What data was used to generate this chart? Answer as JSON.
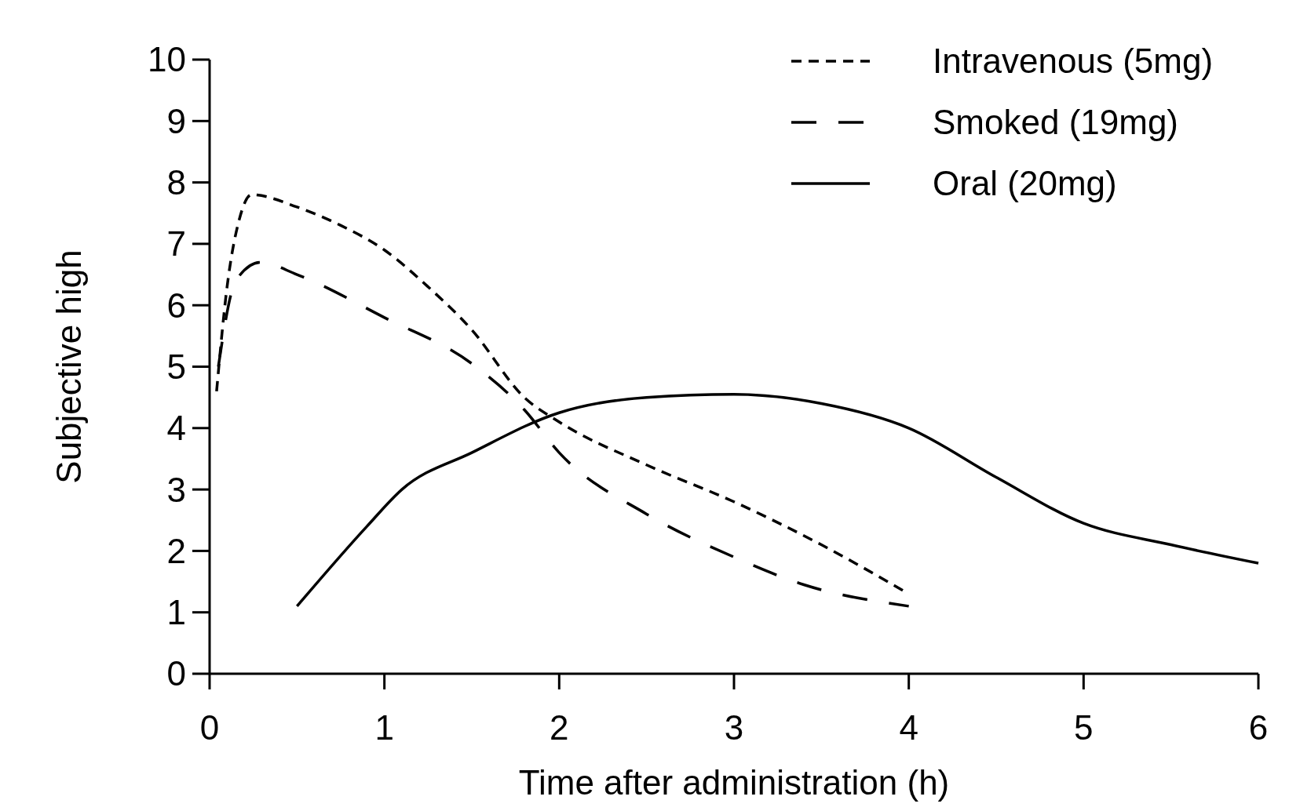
{
  "chart_data": {
    "type": "line",
    "xlabel": "Time after administration (h)",
    "ylabel": "Subjective high",
    "xlim": [
      0,
      6
    ],
    "xticks": [
      0,
      1,
      2,
      3,
      4,
      5,
      6
    ],
    "ylim": [
      0,
      10
    ],
    "yticks": [
      0,
      1,
      2,
      3,
      4,
      5,
      6,
      7,
      8,
      9,
      10
    ],
    "grid": false,
    "legend": "top right",
    "marker": "none",
    "series": [
      {
        "name": "Intravenous (5mg)",
        "color": "#000000",
        "line_style": "dotted",
        "x": [
          0.04,
          0.1,
          0.17,
          0.24,
          0.5,
          0.75,
          1,
          1.25,
          1.5,
          1.8,
          2,
          2.5,
          3,
          3.5,
          4
        ],
        "values": [
          4.6,
          6.3,
          7.4,
          7.8,
          7.6,
          7.3,
          6.9,
          6.3,
          5.6,
          4.5,
          4.1,
          3.4,
          2.8,
          2.1,
          1.3
        ]
      },
      {
        "name": "Smoked (19mg)",
        "color": "#000000",
        "line_style": "dashed",
        "x": [
          0.05,
          0.15,
          0.29,
          0.5,
          1,
          1.5,
          1.8,
          2,
          2.5,
          3,
          3.4,
          4
        ],
        "values": [
          5.0,
          6.4,
          6.7,
          6.5,
          5.8,
          5.05,
          4.3,
          3.6,
          2.6,
          1.9,
          1.45,
          1.1
        ]
      },
      {
        "name": "Oral (20mg)",
        "color": "#000000",
        "line_style": "solid",
        "x": [
          0.5,
          0.9,
          1.1,
          1.5,
          2,
          2.5,
          3,
          3.5,
          4,
          4.5,
          5,
          5.5,
          6
        ],
        "values": [
          1.1,
          2.4,
          3.0,
          3.6,
          4.25,
          4.5,
          4.55,
          4.4,
          4.0,
          3.2,
          2.45,
          2.1,
          1.8
        ]
      }
    ]
  }
}
